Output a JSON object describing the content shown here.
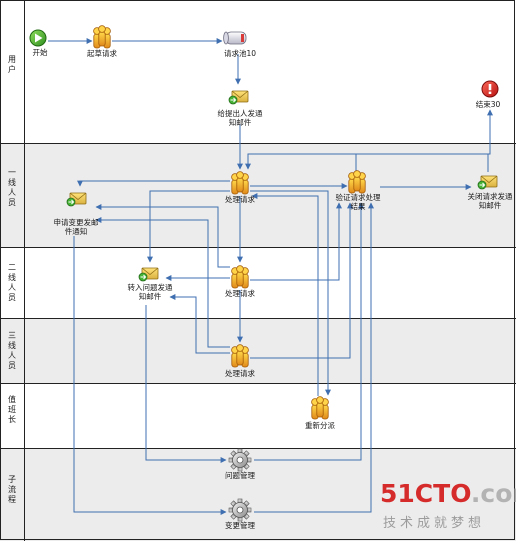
{
  "lanes": [
    {
      "id": "user",
      "label": "用户"
    },
    {
      "id": "l1",
      "label": "一线人员"
    },
    {
      "id": "l2",
      "label": "二线人员"
    },
    {
      "id": "l3",
      "label": "三线人员"
    },
    {
      "id": "duty",
      "label": "值班长"
    },
    {
      "id": "sub",
      "label": "子流程"
    }
  ],
  "nodes": {
    "start": {
      "label": "开始",
      "icon": "play-icon"
    },
    "draft": {
      "label": "起草请求",
      "icon": "people-icon"
    },
    "pool": {
      "label": "请求池10",
      "icon": "pool-icon"
    },
    "notify_requester": {
      "label": [
        "给提出人发通",
        "知邮件"
      ],
      "icon": "mail-icon"
    },
    "end": {
      "label": "结束30",
      "icon": "end-icon"
    },
    "process1": {
      "label": "处理请求",
      "icon": "people-icon"
    },
    "verify": {
      "label": [
        "验证请求处理",
        "结果"
      ],
      "icon": "people-icon"
    },
    "close_mail": {
      "label": [
        "关闭请求发通",
        "知邮件"
      ],
      "icon": "mail-icon"
    },
    "change_mail": {
      "label": [
        "申请变更发邮",
        "件通知"
      ],
      "icon": "mail-icon"
    },
    "process2": {
      "label": "处理请求",
      "icon": "people-icon"
    },
    "problem_mail": {
      "label": [
        "转入问题发通",
        "知邮件"
      ],
      "icon": "mail-icon"
    },
    "process3": {
      "label": "处理请求",
      "icon": "people-icon"
    },
    "reassign": {
      "label": "重新分派",
      "icon": "people-icon"
    },
    "problem_mgmt": {
      "label": "问题管理",
      "icon": "gear-icon"
    },
    "change_mgmt": {
      "label": "变更管理",
      "icon": "gear-icon"
    }
  },
  "watermark": {
    "brand_digits": "51CTO",
    "brand_suffix": ".com",
    "tagline": "技术成就梦想"
  },
  "colors": {
    "lane_alt": "#ececec",
    "border": "#222222",
    "flow": "#3f6fb0",
    "accent_red": "#d52b2b",
    "accent_gray": "#b3b3b3"
  }
}
